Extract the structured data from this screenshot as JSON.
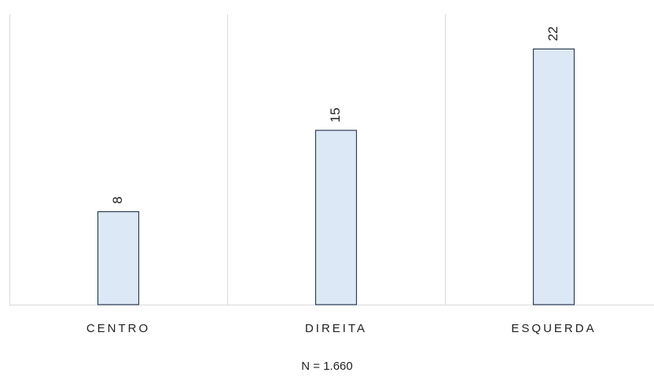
{
  "chart_data": {
    "type": "bar",
    "categories": [
      "CENTRO",
      "DIREITA",
      "ESQUERDA"
    ],
    "values": [
      8,
      15,
      22
    ],
    "data_labels": [
      "8",
      "15",
      "22"
    ],
    "title": "",
    "xlabel": "",
    "ylabel": "",
    "ylim": [
      0,
      25
    ],
    "grid": "vertical separators between categories",
    "legend": "none",
    "data_label_orientation": "rotated 90°",
    "colors": {
      "bar_fill": "#dce8f5",
      "bar_stroke": "#2e3f55",
      "grid": "#d9d9d9",
      "text": "#222222"
    }
  },
  "footnote": "N = 1.660"
}
